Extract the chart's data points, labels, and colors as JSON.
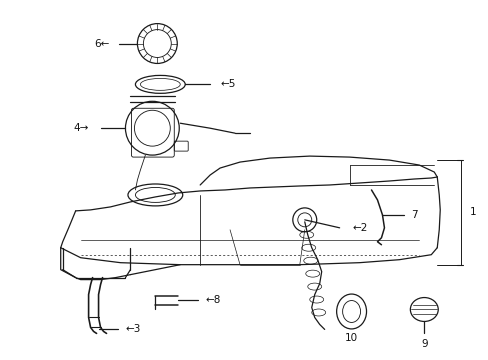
{
  "background_color": "#ffffff",
  "line_color": "#1a1a1a",
  "text_color": "#111111",
  "figsize": [
    4.89,
    3.6
  ],
  "dpi": 100,
  "lw": 0.9
}
